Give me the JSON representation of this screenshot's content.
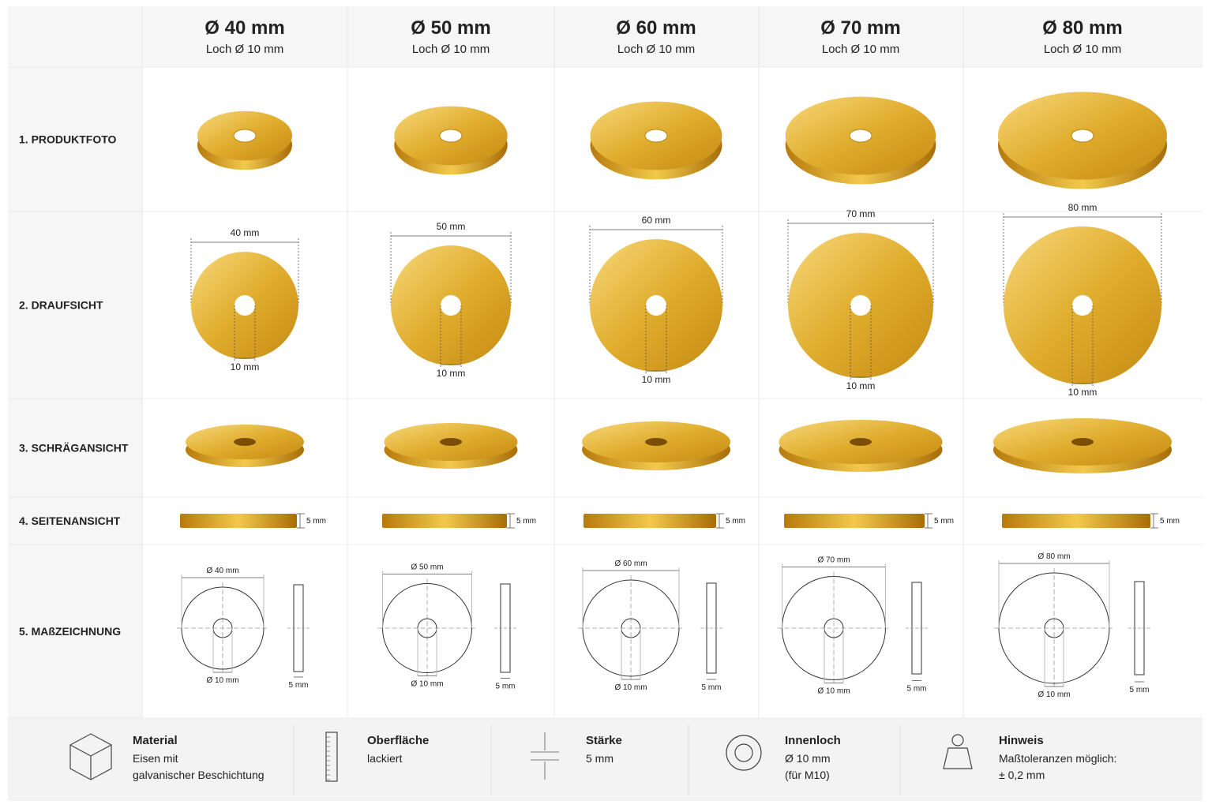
{
  "header": {
    "columns": [
      {
        "title": "Ø 40 mm",
        "subtitle": "Loch Ø 10 mm"
      },
      {
        "title": "Ø 50 mm",
        "subtitle": "Loch Ø 10 mm"
      },
      {
        "title": "Ø 60 mm",
        "subtitle": "Loch Ø 10 mm"
      },
      {
        "title": "Ø 70 mm",
        "subtitle": "Loch Ø 10 mm"
      },
      {
        "title": "Ø 80 mm",
        "subtitle": "Loch Ø 10 mm"
      }
    ]
  },
  "rows": [
    "1. PRODUKTFOTO",
    "2. DRAUFSICHT",
    "3. SCHRÄGANSICHT",
    "4. SEITENANSICHT",
    "5. MAßZEICHNUNG"
  ],
  "cells": [
    {
      "top_width": "40 mm",
      "top_hole": "10 mm",
      "side_thickness": "5 mm",
      "drawing_diameter": "Ø 40 mm",
      "drawing_hole": "Ø 10 mm",
      "drawing_thickness": "5 mm"
    },
    {
      "top_width": "50 mm",
      "top_hole": "10 mm",
      "side_thickness": "5 mm",
      "drawing_diameter": "Ø 50 mm",
      "drawing_hole": "Ø 10 mm",
      "drawing_thickness": "5 mm"
    },
    {
      "top_width": "60 mm",
      "top_hole": "10 mm",
      "side_thickness": "5 mm",
      "drawing_diameter": "Ø 60 mm",
      "drawing_hole": "Ø 10 mm",
      "drawing_thickness": "5 mm"
    },
    {
      "top_width": "70 mm",
      "top_hole": "10 mm",
      "side_thickness": "5 mm",
      "drawing_diameter": "Ø 70 mm",
      "drawing_hole": "Ø 10 mm",
      "drawing_thickness": "5 mm"
    },
    {
      "top_width": "80 mm",
      "top_hole": "10 mm",
      "side_thickness": "5 mm",
      "drawing_diameter": "Ø 80 mm",
      "drawing_hole": "Ø 10 mm",
      "drawing_thickness": "5 mm"
    }
  ],
  "footer": [
    {
      "title": "Material",
      "lines": [
        "Eisen mit",
        "galvanischer Beschichtung"
      ]
    },
    {
      "title": "Oberfläche",
      "lines": [
        "lackiert"
      ]
    },
    {
      "title": "Stärke",
      "lines": [
        "5 mm"
      ]
    },
    {
      "title": "Innenloch",
      "lines": [
        "Ø 10 mm",
        "(für M10)"
      ]
    },
    {
      "title": "Hinweis",
      "lines": [
        "Maßtoleranzen möglich:",
        "± 0,2 mm"
      ]
    }
  ]
}
